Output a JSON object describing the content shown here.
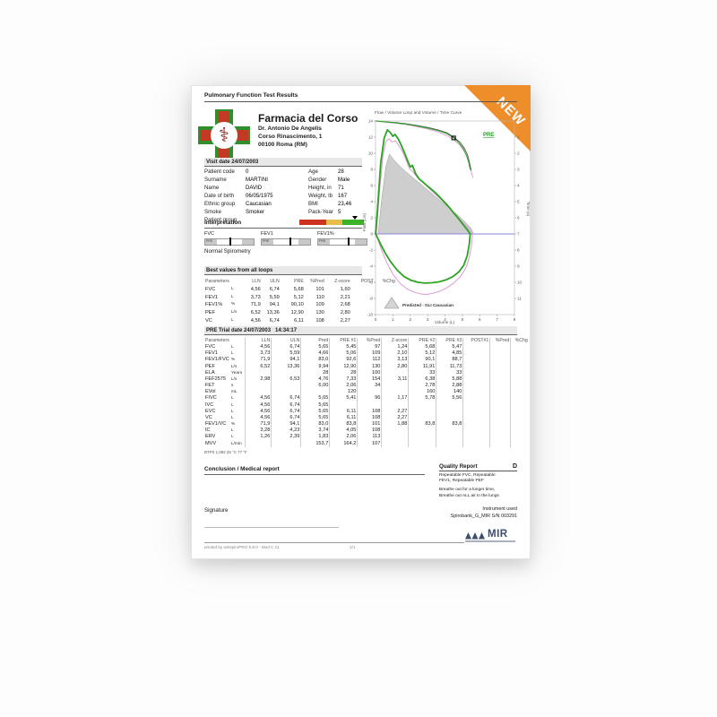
{
  "ribbon": {
    "text": "NEW",
    "color": "#ee8e2b"
  },
  "header": {
    "doc_title": "Pulmonary Function Test Results",
    "clinic_name": "Farmacia del Corso",
    "clinic_lines": [
      "Dr. Antonio De Angelis",
      "Corso Rinascimento, 1",
      "00100 Roma (RM)"
    ],
    "visit_bar": "Visit date 24/07/2003"
  },
  "patient": {
    "left": [
      [
        "Patient code",
        "0"
      ],
      [
        "Surname",
        "MARTINI"
      ],
      [
        "Name",
        "DAVID"
      ],
      [
        "Date of birth",
        "06/05/1975"
      ],
      [
        "Ethnic group",
        "Caucasian"
      ],
      [
        "Smoke",
        "Smoker"
      ],
      [
        "Patient group",
        ""
      ]
    ],
    "right": [
      [
        "Age",
        "28"
      ],
      [
        "Gender",
        "Male"
      ],
      [
        "Height, in",
        "71"
      ],
      [
        "Weight, lb",
        "167"
      ],
      [
        "BMI",
        "23,46"
      ],
      [
        "Pack-Year",
        "5"
      ]
    ]
  },
  "interpretation": {
    "title": "Interpretation",
    "result": "Normal Spirometry",
    "gauge_tag": "PRE",
    "gauges": [
      {
        "label": "FVC",
        "marker": 0.5
      },
      {
        "label": "FEV1",
        "marker": 0.58
      },
      {
        "label": "FEV1%",
        "marker": 0.62
      }
    ],
    "severity": {
      "colors": [
        "#cf3423",
        "#e9bc4a",
        "#3db32a"
      ],
      "widths": [
        0.42,
        0.25,
        0.33
      ],
      "marker": 0.86
    }
  },
  "best_values": {
    "bar": "Best values from all loops",
    "headers": [
      "Parameters",
      "",
      "LLN",
      "ULN",
      "PRE",
      "%Pred",
      "Z-score",
      "POST",
      "%Chg"
    ],
    "rows": [
      [
        "FVC",
        "L",
        "4,56",
        "6,74",
        "5,68",
        "101",
        "1,60",
        "",
        ""
      ],
      [
        "FEV1",
        "L",
        "3,73",
        "5,59",
        "5,12",
        "110",
        "2,21",
        "",
        ""
      ],
      [
        "FEV1%",
        "%",
        "71,9",
        "94,1",
        "90,10",
        "109",
        "2,68",
        "",
        ""
      ],
      [
        "PEF",
        "L/s",
        "6,52",
        "13,36",
        "12,90",
        "130",
        "2,80",
        "",
        ""
      ],
      [
        "VC",
        "L",
        "4,56",
        "6,74",
        "6,11",
        "108",
        "2,27",
        "",
        ""
      ]
    ]
  },
  "trial": {
    "bar": "PRE Trial date 24/07/2003   14:34:17",
    "headers": [
      "Parameters",
      "",
      "LLN",
      "ULN",
      "Pred",
      "PRE #1",
      "%Pred",
      "Z-score",
      "PRE #2",
      "PRE #3",
      "POST#1",
      "%Pred",
      "%Chg"
    ],
    "rows": [
      [
        "FVC",
        "L",
        "4,56",
        "6,74",
        "5,65",
        "5,45",
        "97",
        "1,24",
        "5,68",
        "5,47",
        "",
        "",
        ""
      ],
      [
        "FEV1",
        "L",
        "3,73",
        "5,59",
        "4,66",
        "5,06",
        "109",
        "2,10",
        "5,12",
        "4,85",
        "",
        "",
        ""
      ],
      [
        "FEV1/FVC",
        "%",
        "71,9",
        "94,1",
        "83,0",
        "92,6",
        "112",
        "3,13",
        "90,1",
        "88,7",
        "",
        "",
        ""
      ],
      [
        "PEF",
        "L/s",
        "6,52",
        "13,36",
        "9,94",
        "12,90",
        "130",
        "2,80",
        "11,91",
        "11,73",
        "",
        "",
        ""
      ],
      [
        "ELA",
        "Years",
        "",
        "",
        "28",
        "28",
        "100",
        "",
        "33",
        "33",
        "",
        "",
        ""
      ],
      [
        "FEF2575",
        "L/s",
        "2,98",
        "6,53",
        "4,76",
        "7,33",
        "154",
        "3,11",
        "6,38",
        "5,88",
        "",
        "",
        ""
      ],
      [
        "FET",
        "s",
        "",
        "",
        "6,00",
        "2,06",
        "34",
        "",
        "2,78",
        "2,88",
        "",
        "",
        ""
      ],
      [
        "EVol",
        "mL",
        "",
        "",
        "",
        "120",
        "",
        "",
        "160",
        "140",
        "",
        "",
        ""
      ],
      [
        "FIVC",
        "L",
        "4,56",
        "6,74",
        "5,65",
        "5,41",
        "96",
        "1,17",
        "5,78",
        "5,56",
        "",
        "",
        ""
      ],
      [
        "IVC",
        "L",
        "4,56",
        "6,74",
        "5,65",
        "",
        "",
        "",
        "",
        "",
        "",
        "",
        ""
      ],
      [
        "EVC",
        "L",
        "4,56",
        "6,74",
        "5,65",
        "6,11",
        "108",
        "2,27",
        "",
        "",
        "",
        "",
        ""
      ],
      [
        "VC",
        "L",
        "4,56",
        "6,74",
        "5,65",
        "6,11",
        "108",
        "2,27",
        "",
        "",
        "",
        "",
        ""
      ],
      [
        "FEV1/VC",
        "%",
        "71,9",
        "94,1",
        "83,0",
        "83,8",
        "101",
        "1,88",
        "83,8",
        "83,8",
        "",
        "",
        ""
      ],
      [
        "IC",
        "L",
        "3,28",
        "4,23",
        "3,74",
        "4,05",
        "108",
        "",
        "",
        "",
        "",
        "",
        ""
      ],
      [
        "ERV",
        "L",
        "1,26",
        "2,39",
        "1,83",
        "2,06",
        "113",
        "",
        "",
        "",
        "",
        "",
        ""
      ],
      [
        "MVV",
        "L/min",
        "",
        "",
        "153,7",
        "164,2",
        "107",
        "",
        "",
        "",
        "",
        "",
        ""
      ]
    ],
    "btps": "BTPS 1,092 25 °C 77 °F"
  },
  "conclusion": {
    "title": "Conclusion / Medical report",
    "signature_label": "Signature"
  },
  "quality": {
    "title": "Quality Report",
    "grade": "D",
    "lines": [
      "Repeatable FVC, Repeatable",
      "FEV1, Repeatable PEF"
    ],
    "advice": [
      "Breathe out for a longer time,",
      "Breathe out ALL air in the lungs"
    ]
  },
  "instrument": {
    "label": "Instrument used",
    "value": "Spirobank_G_MIR S/N 003291"
  },
  "footer": {
    "printed": "printed by winspiroPRO 5.9.0 - Mod C 11",
    "page": "1/1",
    "logo_text": "MIR"
  },
  "chart_data": {
    "type": "line",
    "title": "Flow / Volume Loop and Volume / Time Curve",
    "xlabel": "Volume (L)",
    "ylabel": "Flow (L/s)",
    "y2label": "Time (s)",
    "pre_label": "PRE",
    "legend": "Predicted - GLI Caucasian",
    "xlim": [
      0,
      8
    ],
    "ylim": [
      -10,
      14
    ],
    "y2lim": [
      0,
      12
    ],
    "x_ticks": [
      0,
      1,
      2,
      3,
      4,
      5,
      6,
      7,
      8
    ],
    "y_ticks": [
      14,
      12,
      10,
      8,
      6,
      4,
      2,
      0,
      -2,
      -4,
      -6,
      -8,
      -10
    ],
    "y2_ticks": [
      1,
      2,
      3,
      4,
      5,
      6,
      7,
      8,
      9,
      10,
      11
    ],
    "marker": {
      "x": 4.5,
      "t": 1.05
    },
    "series": [
      {
        "name": "predicted-area",
        "fill": true,
        "color": "#cecece",
        "stroke": "#9a9a9a",
        "points": [
          [
            0.15,
            0
          ],
          [
            0.35,
            4.2
          ],
          [
            0.6,
            8.4
          ],
          [
            0.8,
            9.9
          ],
          [
            1.05,
            9.2
          ],
          [
            1.35,
            8.5
          ],
          [
            1.75,
            7.7
          ],
          [
            2.25,
            6.8
          ],
          [
            2.75,
            5.9
          ],
          [
            3.25,
            5.0
          ],
          [
            3.75,
            4.1
          ],
          [
            4.25,
            3.2
          ],
          [
            4.75,
            2.3
          ],
          [
            5.15,
            1.5
          ],
          [
            5.5,
            0.7
          ],
          [
            5.65,
            0
          ]
        ]
      },
      {
        "name": "trial-flow-volume-loop",
        "color": "#d893cd",
        "w": 0.9,
        "points": [
          [
            0.05,
            0
          ],
          [
            0.2,
            4.5
          ],
          [
            0.42,
            9.6
          ],
          [
            0.6,
            11.5
          ],
          [
            0.78,
            11.8
          ],
          [
            0.95,
            11.4
          ],
          [
            1.15,
            11.55
          ],
          [
            1.35,
            10.9
          ],
          [
            1.55,
            10.2
          ],
          [
            1.75,
            9.2
          ],
          [
            1.95,
            8.1
          ],
          [
            2.15,
            7.7
          ],
          [
            2.35,
            7.15
          ],
          [
            2.6,
            6.6
          ],
          [
            2.85,
            6.15
          ],
          [
            3.1,
            5.6
          ],
          [
            3.35,
            5.1
          ],
          [
            3.6,
            4.6
          ],
          [
            3.85,
            4.1
          ],
          [
            4.1,
            3.55
          ],
          [
            4.35,
            3.0
          ],
          [
            4.6,
            2.45
          ],
          [
            4.85,
            1.85
          ],
          [
            5.1,
            1.25
          ],
          [
            5.35,
            0.65
          ],
          [
            5.58,
            0
          ],
          [
            5.52,
            -1.6
          ],
          [
            5.38,
            -3.1
          ],
          [
            5.18,
            -4.3
          ],
          [
            4.88,
            -5.3
          ],
          [
            4.5,
            -6.1
          ],
          [
            4.1,
            -6.7
          ],
          [
            3.7,
            -7.1
          ],
          [
            3.3,
            -7.35
          ],
          [
            2.95,
            -7.5
          ],
          [
            2.6,
            -7.45
          ],
          [
            2.2,
            -7.2
          ],
          [
            1.8,
            -6.8
          ],
          [
            1.4,
            -6.1
          ],
          [
            1.0,
            -5.0
          ],
          [
            0.68,
            -3.7
          ],
          [
            0.42,
            -2.4
          ],
          [
            0.2,
            -1.1
          ],
          [
            0.05,
            0
          ]
        ]
      },
      {
        "name": "pre-flow-volume-loop",
        "color": "#2ba424",
        "w": 1.8,
        "points": [
          [
            0,
            0
          ],
          [
            0.12,
            3.2
          ],
          [
            0.3,
            8.8
          ],
          [
            0.5,
            11.9
          ],
          [
            0.68,
            12.9
          ],
          [
            0.85,
            12.55
          ],
          [
            1.0,
            12.1
          ],
          [
            1.12,
            12.35
          ],
          [
            1.3,
            11.8
          ],
          [
            1.5,
            10.9
          ],
          [
            1.7,
            9.9
          ],
          [
            1.9,
            8.8
          ],
          [
            2.0,
            8.3
          ],
          [
            2.12,
            8.5
          ],
          [
            2.3,
            7.5
          ],
          [
            2.5,
            6.85
          ],
          [
            2.7,
            6.5
          ],
          [
            2.9,
            6.1
          ],
          [
            3.1,
            5.75
          ],
          [
            3.3,
            5.4
          ],
          [
            3.5,
            5.0
          ],
          [
            3.7,
            4.55
          ],
          [
            3.9,
            4.1
          ],
          [
            4.1,
            3.65
          ],
          [
            4.3,
            3.15
          ],
          [
            4.5,
            2.6
          ],
          [
            4.7,
            2.1
          ],
          [
            4.9,
            1.55
          ],
          [
            5.1,
            1.0
          ],
          [
            5.25,
            0.6
          ],
          [
            5.45,
            0
          ],
          [
            5.4,
            -1.3
          ],
          [
            5.28,
            -2.7
          ],
          [
            5.08,
            -3.9
          ],
          [
            4.8,
            -4.7
          ],
          [
            4.45,
            -5.3
          ],
          [
            4.05,
            -5.7
          ],
          [
            3.65,
            -5.95
          ],
          [
            3.25,
            -6.05
          ],
          [
            2.85,
            -6.1
          ],
          [
            2.45,
            -6.0
          ],
          [
            2.05,
            -5.75
          ],
          [
            1.65,
            -5.3
          ],
          [
            1.25,
            -4.5
          ],
          [
            0.85,
            -3.4
          ],
          [
            0.55,
            -2.35
          ],
          [
            0.3,
            -1.3
          ],
          [
            0.1,
            -0.4
          ],
          [
            0,
            0
          ]
        ]
      },
      {
        "name": "volume-time-trial",
        "time": true,
        "color": "#d893cd",
        "w": 0.8,
        "points": [
          [
            0,
            0
          ],
          [
            0.6,
            0.07
          ],
          [
            1.2,
            0.14
          ],
          [
            1.8,
            0.23
          ],
          [
            2.4,
            0.35
          ],
          [
            3.0,
            0.5
          ],
          [
            3.6,
            0.68
          ],
          [
            4.1,
            0.9
          ],
          [
            4.5,
            1.15
          ],
          [
            4.85,
            1.5
          ],
          [
            5.15,
            1.95
          ],
          [
            5.35,
            2.5
          ],
          [
            5.5,
            3.1
          ],
          [
            5.6,
            3.5
          ]
        ]
      },
      {
        "name": "volume-time-dark",
        "time": true,
        "color": "#4a4a4a",
        "w": 0.8,
        "points": [
          [
            0,
            0
          ],
          [
            0.6,
            0.05
          ],
          [
            1.2,
            0.1
          ],
          [
            1.8,
            0.18
          ],
          [
            2.4,
            0.28
          ],
          [
            3.0,
            0.4
          ],
          [
            3.6,
            0.55
          ],
          [
            4.1,
            0.72
          ],
          [
            4.5,
            1.0
          ],
          [
            4.85,
            1.3
          ],
          [
            5.1,
            1.65
          ],
          [
            5.3,
            2.1
          ],
          [
            5.42,
            2.6
          ],
          [
            5.5,
            3.05
          ]
        ]
      },
      {
        "name": "volume-time-pre",
        "time": true,
        "color": "#2ba424",
        "w": 1.0,
        "points": [
          [
            0,
            0
          ],
          [
            0.6,
            0.06
          ],
          [
            1.2,
            0.12
          ],
          [
            1.8,
            0.2
          ],
          [
            2.4,
            0.31
          ],
          [
            3.0,
            0.44
          ],
          [
            3.6,
            0.6
          ],
          [
            4.1,
            0.78
          ],
          [
            4.5,
            1.05
          ],
          [
            4.8,
            1.35
          ],
          [
            5.05,
            1.7
          ],
          [
            5.25,
            2.15
          ],
          [
            5.38,
            2.62
          ],
          [
            5.45,
            3.0
          ]
        ]
      }
    ]
  }
}
